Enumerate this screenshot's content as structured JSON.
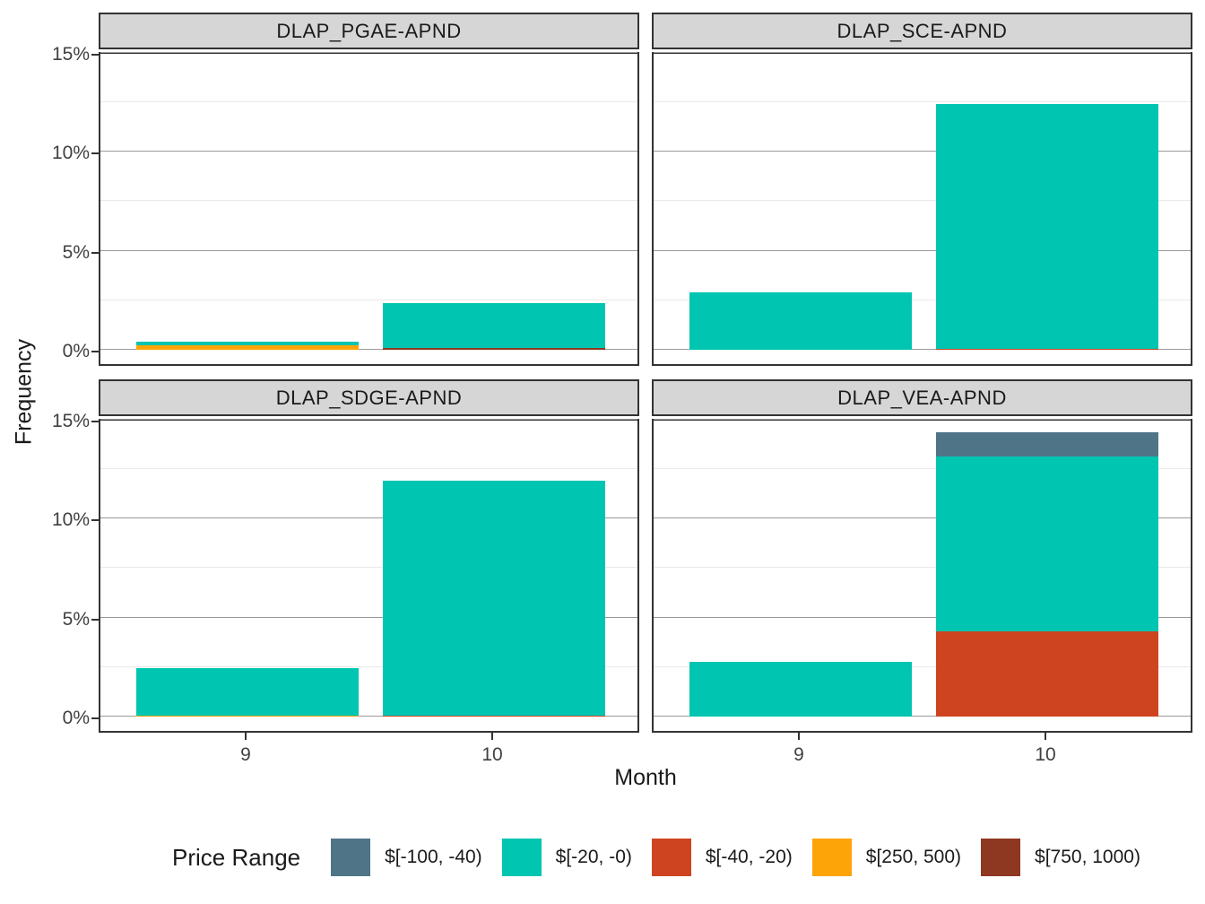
{
  "y_axis": {
    "title": "Frequency",
    "major_ticks": [
      {
        "label": "15%",
        "value": 15
      },
      {
        "label": "10%",
        "value": 10
      },
      {
        "label": "5%",
        "value": 5
      },
      {
        "label": "0%",
        "value": 0
      }
    ],
    "minor_ticks": [
      12.5,
      7.5,
      2.5
    ]
  },
  "x_axis": {
    "title": "Month",
    "ticks": [
      {
        "label": "9",
        "value": 9
      },
      {
        "label": "10",
        "value": 10
      }
    ]
  },
  "colors": {
    "slate": "#4F7488",
    "teal": "#00C5B1",
    "red": "#CE4420",
    "orange": "#FDA409",
    "brown": "#8E3721",
    "strip_bg": "#D6D6D6",
    "panel_border": "#333333",
    "grid_major": "#9A9A9A",
    "grid_minor": "#E9E9E9"
  },
  "legend": {
    "title": "Price Range",
    "items": [
      {
        "label": "$[-100, -40)",
        "color_key": "slate"
      },
      {
        "label": "$[-20, -0)",
        "color_key": "teal"
      },
      {
        "label": "$[-40, -20)",
        "color_key": "red"
      },
      {
        "label": "$[250, 500)",
        "color_key": "orange"
      },
      {
        "label": "$[750, 1000)",
        "color_key": "brown"
      }
    ]
  },
  "chart_data": {
    "type": "bar",
    "stacked": true,
    "title": "",
    "xlabel": "Month",
    "ylabel": "Frequency",
    "x_values": [
      9,
      10
    ],
    "ylim": [
      0,
      15.12
    ],
    "grid": true,
    "legend_position": "bottom",
    "facets": [
      {
        "title": "DLAP_PGAE-APND",
        "bars": [
          {
            "x": 9,
            "segments": [
              {
                "range": "$[250, 500)",
                "color_key": "orange",
                "value": 0.21
              },
              {
                "range": "$[-20, -0)",
                "color_key": "teal",
                "value": 0.21
              }
            ]
          },
          {
            "x": 10,
            "segments": [
              {
                "range": "$[750, 1000)",
                "color_key": "brown",
                "value": 0.08
              },
              {
                "range": "$[-20, -0)",
                "color_key": "teal",
                "value": 2.3
              }
            ]
          }
        ]
      },
      {
        "title": "DLAP_SCE-APND",
        "bars": [
          {
            "x": 9,
            "segments": [
              {
                "range": "$[-20, -0)",
                "color_key": "teal",
                "value": 2.9
              }
            ]
          },
          {
            "x": 10,
            "segments": [
              {
                "range": "$[-40, -20)",
                "color_key": "red",
                "value": 0.07
              },
              {
                "range": "$[-20, -0)",
                "color_key": "teal",
                "value": 12.35
              }
            ]
          }
        ]
      },
      {
        "title": "DLAP_SDGE-APND",
        "bars": [
          {
            "x": 9,
            "segments": [
              {
                "range": "$[250, 500)",
                "color_key": "orange",
                "value": 0.05
              },
              {
                "range": "$[-20, -0)",
                "color_key": "teal",
                "value": 2.4
              }
            ]
          },
          {
            "x": 10,
            "segments": [
              {
                "range": "$[-40, -20)",
                "color_key": "red",
                "value": 0.05
              },
              {
                "range": "$[-20, -0)",
                "color_key": "teal",
                "value": 11.85
              }
            ]
          }
        ]
      },
      {
        "title": "DLAP_VEA-APND",
        "bars": [
          {
            "x": 9,
            "segments": [
              {
                "range": "$[-20, -0)",
                "color_key": "teal",
                "value": 2.77
              }
            ]
          },
          {
            "x": 10,
            "segments": [
              {
                "range": "$[-40, -20)",
                "color_key": "red",
                "value": 4.3
              },
              {
                "range": "$[-20, -0)",
                "color_key": "teal",
                "value": 8.82
              },
              {
                "range": "$[-100, -40)",
                "color_key": "slate",
                "value": 1.24
              }
            ]
          }
        ]
      }
    ]
  }
}
